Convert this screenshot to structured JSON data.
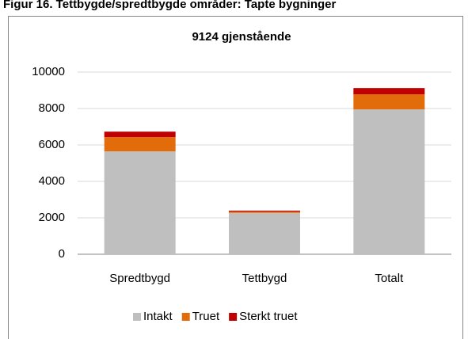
{
  "heading": "Figur 16. Tettbygde/spredtbygde områder: Tapte bygninger",
  "chart_data": {
    "type": "stacked_bar",
    "title": "9124 gjenstående",
    "categories": [
      "Spredtbygd",
      "Tettbygd",
      "Totalt"
    ],
    "series": [
      {
        "name": "Intakt",
        "color": "#bfbfbf",
        "values": [
          5650,
          2270,
          7950
        ]
      },
      {
        "name": "Truet",
        "color": "#e36c0a",
        "values": [
          780,
          70,
          830
        ]
      },
      {
        "name": "Sterkt truet",
        "color": "#c00000",
        "values": [
          300,
          54,
          344
        ]
      }
    ],
    "ylim": [
      0,
      10000
    ],
    "yticks": [
      0,
      2000,
      4000,
      6000,
      8000,
      10000
    ],
    "grid": true,
    "legend": "bottom"
  }
}
